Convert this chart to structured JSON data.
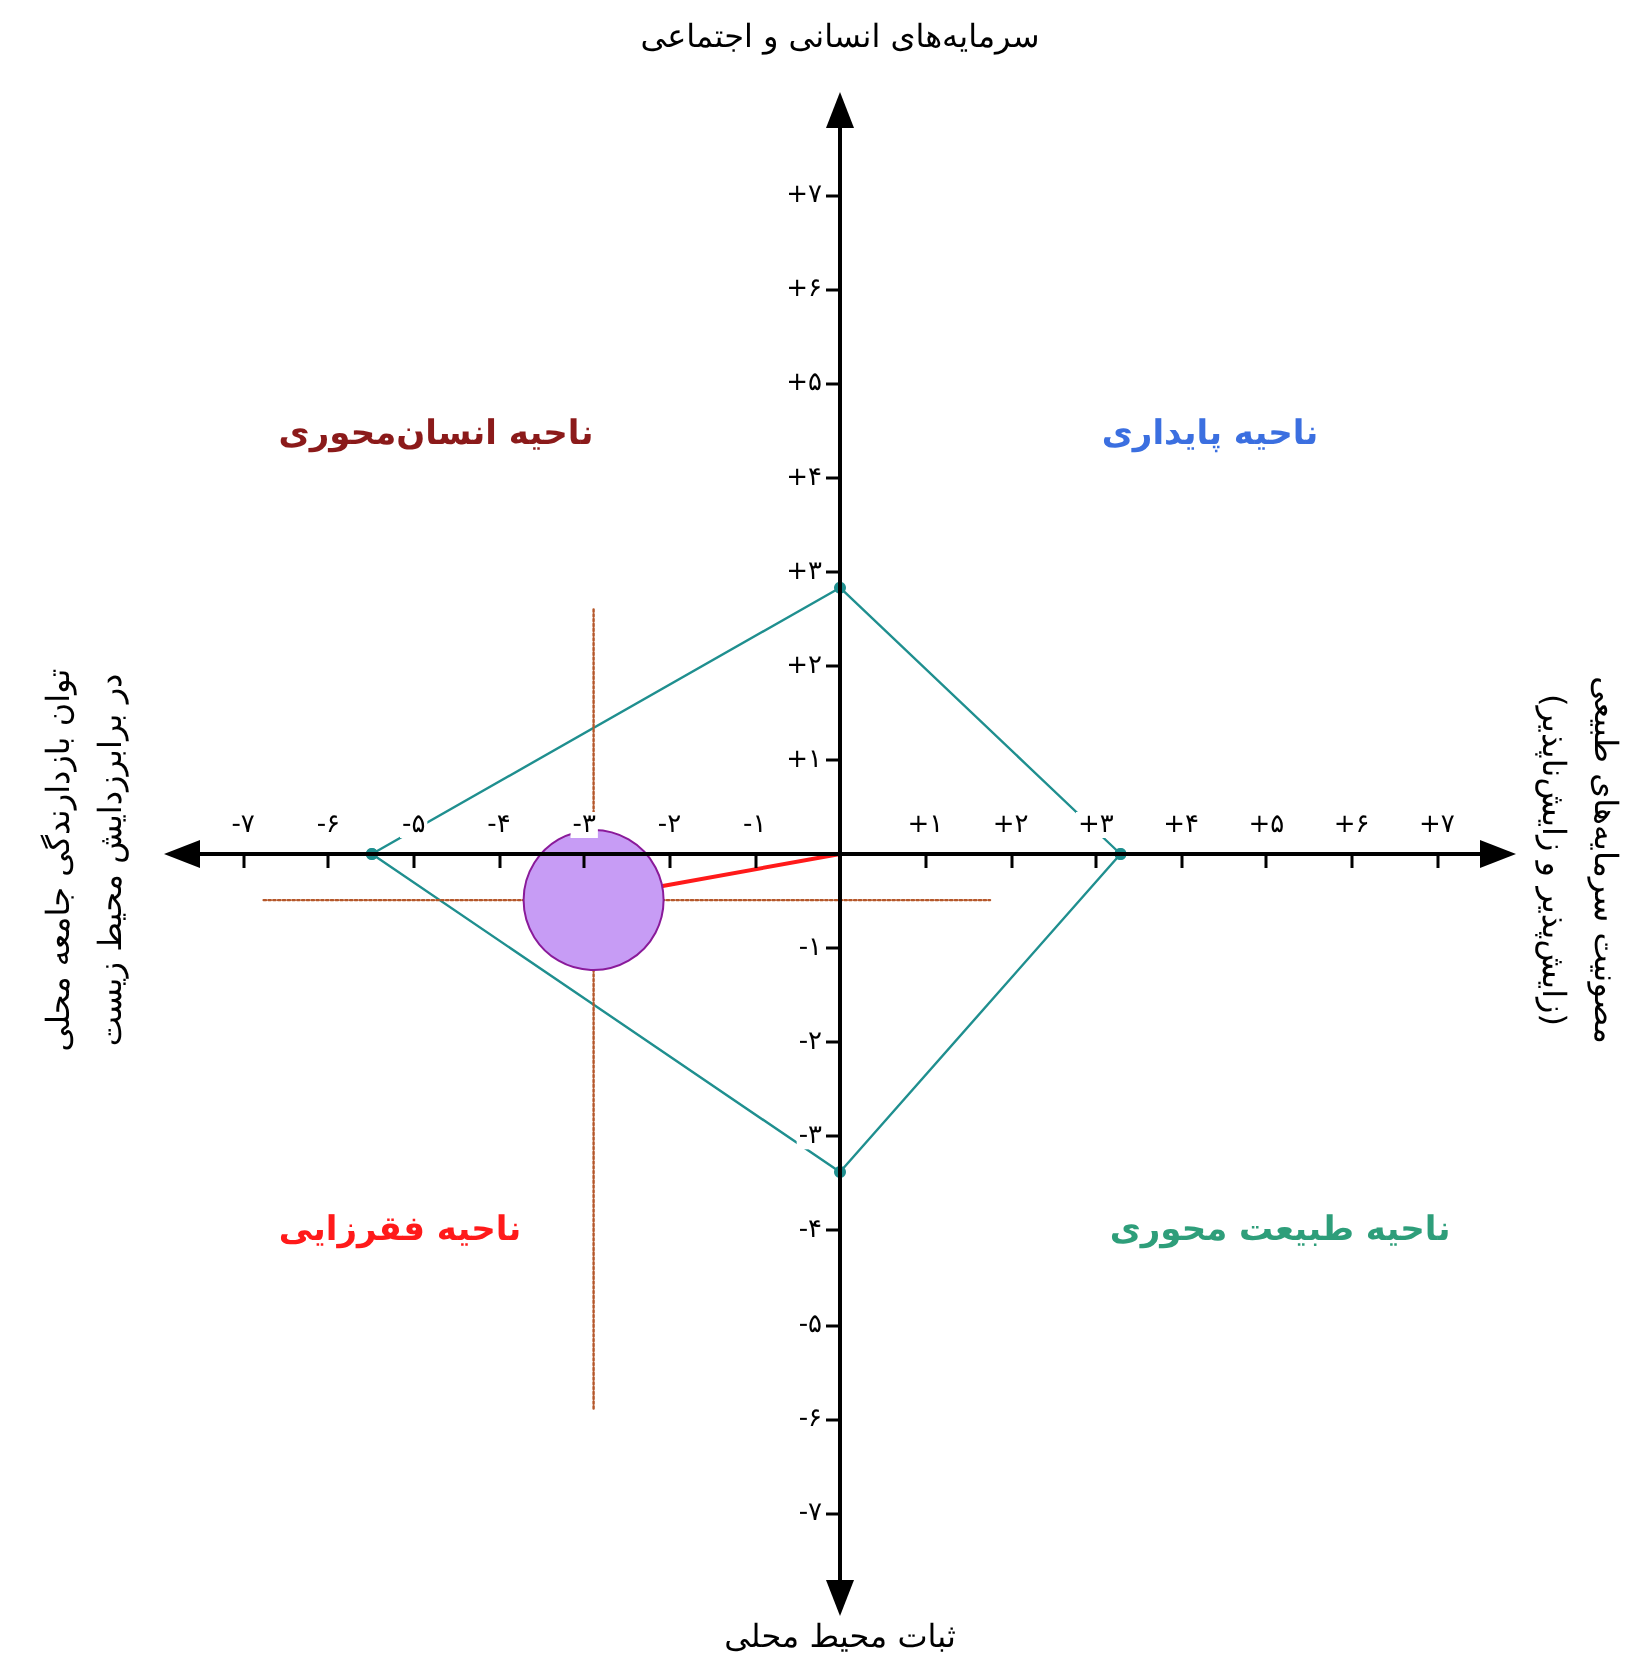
{
  "chart_data": {
    "type": "line",
    "xlim": [
      -7.6,
      7.6
    ],
    "ylim": [
      -7.8,
      7.8
    ],
    "xticks": [
      {
        "value": -7,
        "label": "-۷"
      },
      {
        "value": -6,
        "label": "-۶"
      },
      {
        "value": -5,
        "label": "-۵"
      },
      {
        "value": -4,
        "label": "-۴"
      },
      {
        "value": -3,
        "label": "-۳"
      },
      {
        "value": -2,
        "label": "-۲"
      },
      {
        "value": -1,
        "label": "-۱"
      },
      {
        "value": 1,
        "label": "+۱"
      },
      {
        "value": 2,
        "label": "+۲"
      },
      {
        "value": 3,
        "label": "+۳"
      },
      {
        "value": 4,
        "label": "+۴"
      },
      {
        "value": 5,
        "label": "+۵"
      },
      {
        "value": 6,
        "label": "+۶"
      },
      {
        "value": 7,
        "label": "+۷"
      }
    ],
    "yticks": [
      {
        "value": -7,
        "label": "-۷"
      },
      {
        "value": -6,
        "label": "-۶"
      },
      {
        "value": -5,
        "label": "-۵"
      },
      {
        "value": -4,
        "label": "-۴"
      },
      {
        "value": -3,
        "label": "-۳"
      },
      {
        "value": -2,
        "label": "-۲"
      },
      {
        "value": -1,
        "label": "-۱"
      },
      {
        "value": 1,
        "label": "+۱"
      },
      {
        "value": 2,
        "label": "+۲"
      },
      {
        "value": 3,
        "label": "+۳"
      },
      {
        "value": 4,
        "label": "+۴"
      },
      {
        "value": 5,
        "label": "+۵"
      },
      {
        "value": 6,
        "label": "+۶"
      },
      {
        "value": 7,
        "label": "+۷"
      }
    ],
    "grid": false,
    "series": [
      {
        "color": "#1f8f8f",
        "marker": "circle",
        "x": [
          -5.49,
          0,
          3.29
        ],
        "values": [
          0,
          2.83,
          0
        ]
      },
      {
        "color": "#1f8f8f",
        "marker": "circle",
        "x": [
          -5.49,
          0,
          3.29
        ],
        "values": [
          0,
          -3.38,
          0
        ]
      },
      {
        "color": "#ff1a1a",
        "marker": "none",
        "x": [
          -2.08,
          0
        ],
        "values": [
          -0.34,
          0
        ]
      },
      {
        "color": "#b5572a",
        "marker": "none",
        "line_style": "dotted",
        "x": [
          -2.89,
          -2.89
        ],
        "values": [
          2.6,
          -5.9
        ]
      },
      {
        "color": "#b5572a",
        "marker": "none",
        "line_style": "dotted",
        "x": [
          -6.76,
          1.76
        ],
        "values": [
          -0.49,
          -0.49
        ]
      },
      {
        "type": "bubble",
        "color": "#c79cf5",
        "x": [
          -2.89
        ],
        "values": [
          -0.49
        ],
        "sizes": [
          1
        ]
      }
    ],
    "annotations": [
      "سرمایه‌های انسانی و اجتماعی",
      "ثبات محیط محلی",
      "توان بازدارندگی جامعه محلی\nدر برابرزدایش محیط زیست",
      "مصونیت سرمایه‌های طبیعی\n(زایش‌پذیر و زایش‌ناپذیر)",
      "ناحیه انسان‌محوری",
      "ناحیه پایداری",
      "ناحیه فقرزایی",
      "ناحیه طبیعت محوری"
    ]
  }
}
